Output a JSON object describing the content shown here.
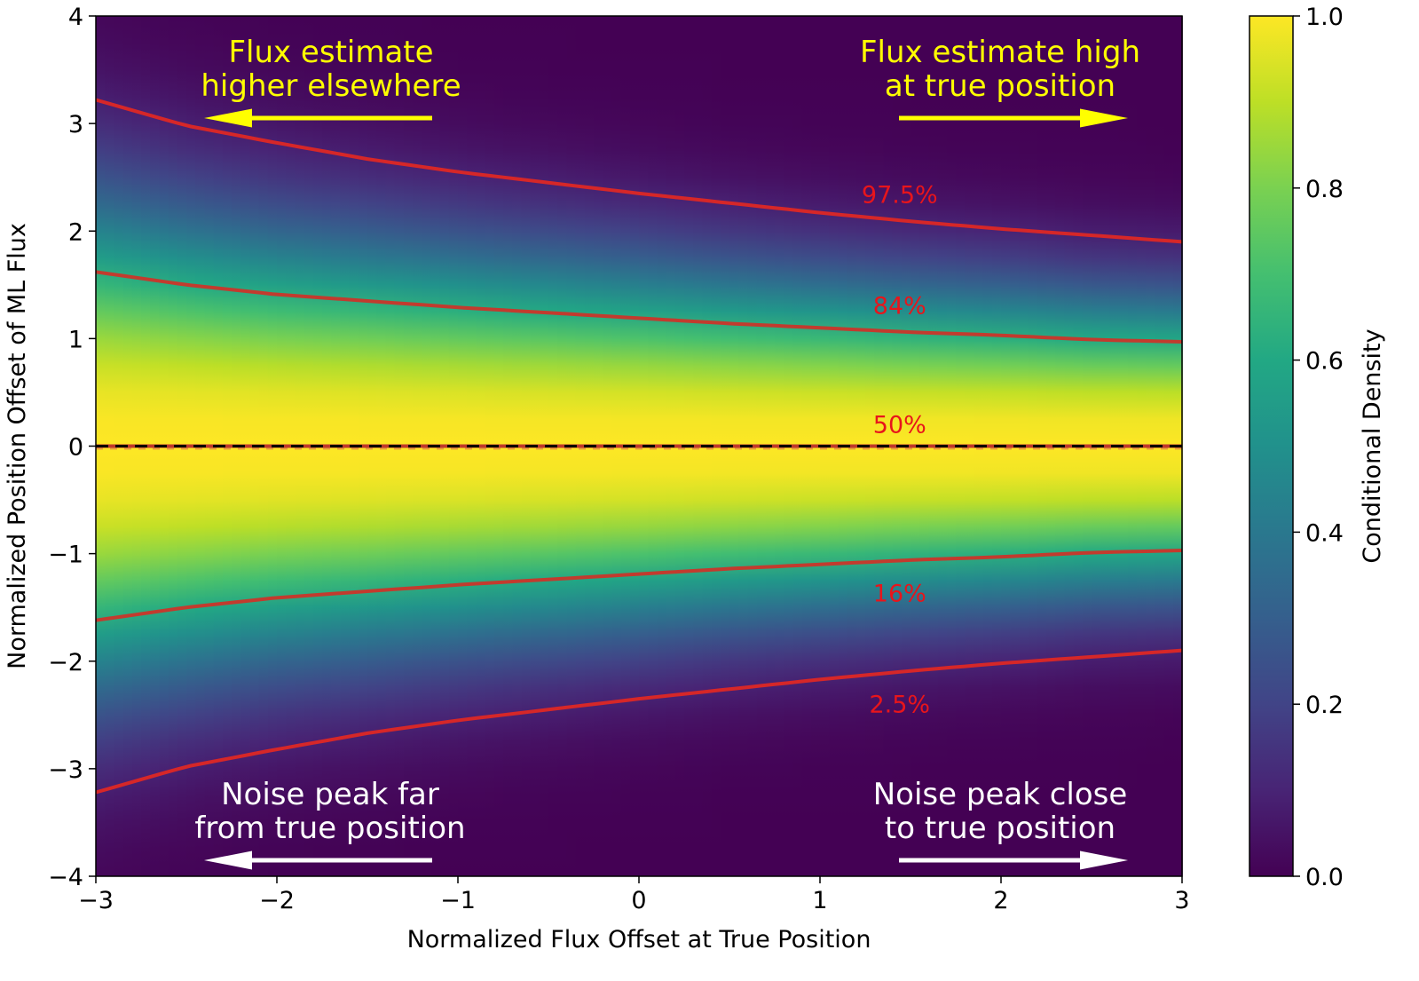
{
  "chart_data": {
    "type": "heatmap",
    "xlabel": "Normalized Flux Offset at True Position",
    "ylabel": "Normalized Position Offset of ML Flux",
    "xlim": [
      -3,
      3
    ],
    "ylim": [
      -4,
      4
    ],
    "x_ticks": [
      -3,
      -2,
      -1,
      0,
      1,
      2,
      3
    ],
    "x_tick_labels": [
      "−3",
      "−2",
      "−1",
      "0",
      "1",
      "2",
      "3"
    ],
    "y_ticks": [
      -4,
      -3,
      -2,
      -1,
      0,
      1,
      2,
      3,
      4
    ],
    "y_tick_labels": [
      "−4",
      "−3",
      "−2",
      "−1",
      "0",
      "1",
      "2",
      "3",
      "4"
    ],
    "grid": false,
    "colormap": "viridis",
    "colorbar": {
      "label": "Conditional Density",
      "range": [
        0.0,
        1.0
      ],
      "ticks": [
        0.0,
        0.2,
        0.4,
        0.6,
        0.8,
        1.0
      ],
      "tick_labels": [
        "0.0",
        "0.2",
        "0.4",
        "0.6",
        "0.8",
        "1.0"
      ]
    },
    "x": [
      -3,
      -2.5,
      -2,
      -1.5,
      -1,
      -0.5,
      0,
      0.5,
      1,
      1.5,
      2,
      2.5,
      3
    ],
    "quantile_curves": [
      {
        "label": "97.5%",
        "color": "#d62728",
        "values": [
          3.22,
          2.98,
          2.82,
          2.67,
          2.55,
          2.45,
          2.35,
          2.26,
          2.17,
          2.09,
          2.02,
          1.96,
          1.9
        ]
      },
      {
        "label": "84%",
        "color": "#c23b2e",
        "values": [
          1.62,
          1.5,
          1.41,
          1.35,
          1.29,
          1.24,
          1.19,
          1.14,
          1.1,
          1.06,
          1.03,
          0.99,
          0.97
        ]
      },
      {
        "label": "50%",
        "color": "#c0392b",
        "values": [
          0,
          0,
          0,
          0,
          0,
          0,
          0,
          0,
          0,
          0,
          0,
          0,
          0
        ]
      },
      {
        "label": "16%",
        "color": "#c23b2e",
        "values": [
          -1.62,
          -1.5,
          -1.41,
          -1.35,
          -1.29,
          -1.24,
          -1.19,
          -1.14,
          -1.1,
          -1.06,
          -1.03,
          -0.99,
          -0.97
        ]
      },
      {
        "label": "2.5%",
        "color": "#d62728",
        "values": [
          -3.22,
          -2.98,
          -2.82,
          -2.67,
          -2.55,
          -2.45,
          -2.35,
          -2.26,
          -2.17,
          -2.09,
          -2.02,
          -1.96,
          -1.9
        ]
      }
    ],
    "reference_line": {
      "y": 0,
      "style": "dashed",
      "color": "#000000"
    },
    "annotations": [
      {
        "text_lines": [
          "Flux estimate",
          "higher elsewhere"
        ],
        "color": "#ffff00",
        "arrow": "left"
      },
      {
        "text_lines": [
          "Flux estimate high",
          "at true position"
        ],
        "color": "#ffff00",
        "arrow": "right"
      },
      {
        "text_lines": [
          "Noise peak far",
          "from true position"
        ],
        "color": "#ffffff",
        "arrow": "left"
      },
      {
        "text_lines": [
          "Noise peak close",
          "to true position"
        ],
        "color": "#ffffff",
        "arrow": "right"
      }
    ]
  }
}
